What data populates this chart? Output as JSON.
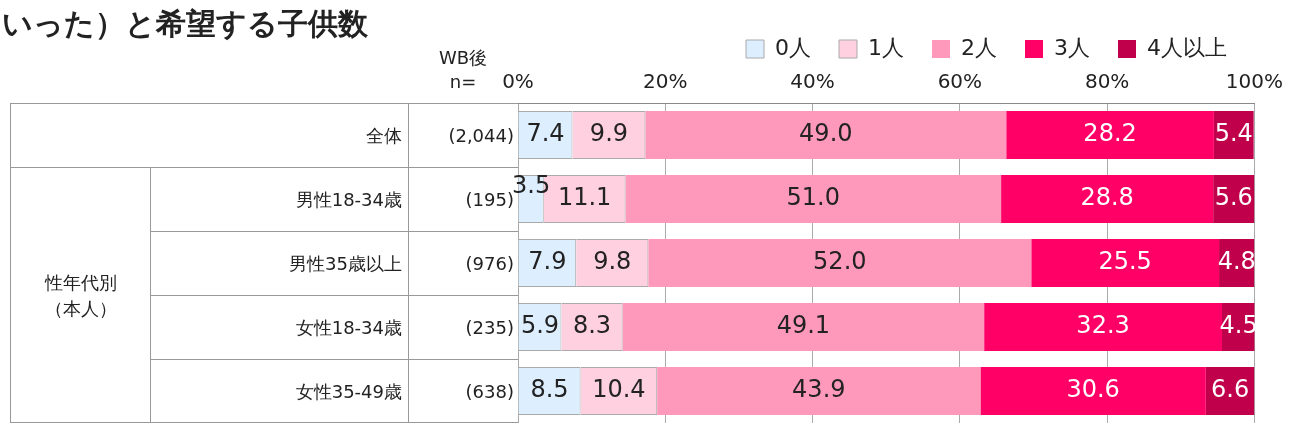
{
  "chart_data": {
    "type": "bar",
    "orientation": "horizontal",
    "stacked": true,
    "title": "いった）と希望する子供数",
    "categories": [
      "全体",
      "男性18-34歳",
      "男性35歳以上",
      "女性18-34歳",
      "女性35-49歳"
    ],
    "series": [
      {
        "name": "0人",
        "color": "#ddeeff",
        "values": [
          7.4,
          3.5,
          7.9,
          5.9,
          8.5
        ],
        "value_labels": [
          "7.4",
          "3.5",
          "7.9",
          "5.9",
          "8.5"
        ]
      },
      {
        "name": "1人",
        "color": "#ffd0e0",
        "values": [
          9.9,
          11.1,
          9.8,
          8.3,
          10.4
        ],
        "value_labels": [
          "9.9",
          "11.1",
          "9.8",
          "8.3",
          "10.4"
        ]
      },
      {
        "name": "2人",
        "color": "#ff99bb",
        "values": [
          49.0,
          51.0,
          52.0,
          49.1,
          43.9
        ],
        "value_labels": [
          "49.0",
          "51.0",
          "52.0",
          "49.1",
          "43.9"
        ]
      },
      {
        "name": "3人",
        "color": "#ff0066",
        "values": [
          28.2,
          28.8,
          25.5,
          32.3,
          30.6
        ],
        "value_labels": [
          "28.2",
          "28.8",
          "25.5",
          "32.3",
          "30.6"
        ]
      },
      {
        "name": "4人以上",
        "color": "#c0004a",
        "values": [
          5.4,
          5.6,
          4.8,
          4.5,
          6.6
        ],
        "value_labels": [
          "5.4",
          "5.6",
          "4.8",
          "4.5",
          "6.6"
        ]
      }
    ],
    "xlim": [
      0,
      100
    ],
    "xticks": [
      {
        "value": 0,
        "label": "0%"
      },
      {
        "value": 20,
        "label": "20%"
      },
      {
        "value": 40,
        "label": "40%"
      },
      {
        "value": 60,
        "label": "60%"
      },
      {
        "value": 80,
        "label": "80%"
      },
      {
        "value": 100,
        "label": "100%"
      }
    ],
    "grid": "x",
    "legend": "top",
    "annotations": [
      "WB後\nn=",
      "性年代別（本人）",
      "(2,044)",
      "(195)",
      "(976)",
      "(235)",
      "(638)"
    ]
  }
}
